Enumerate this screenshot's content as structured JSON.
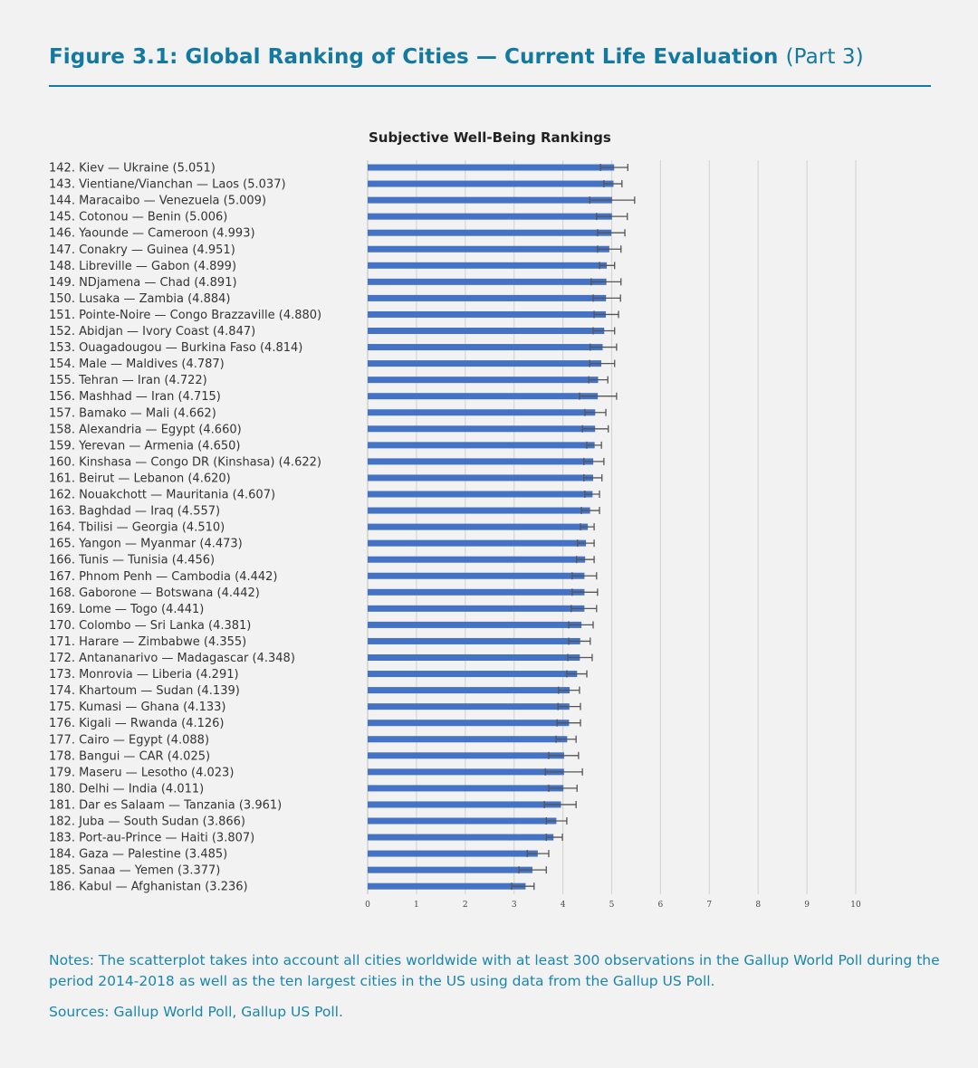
{
  "figure": {
    "title": "Figure 3.1: Global Ranking of Cities — Current Life Evaluation",
    "part": "(Part 3)"
  },
  "notes": "Notes: The scatterplot takes into account all cities worldwide with at least 300 observations in the Gallup World Poll during the period 2014-2018 as well as the ten largest cities in the US using data from the Gallup US Poll.",
  "sources": "Sources: Gallup World Poll, Gallup US Poll.",
  "chart_data": {
    "type": "bar",
    "orientation": "horizontal",
    "title": "Subjective Well-Being Rankings",
    "xlim": [
      0,
      10
    ],
    "xticks": [
      "0",
      "1",
      "2",
      "3",
      "4",
      "5",
      "6",
      "7",
      "8",
      "9",
      "10"
    ],
    "grid": true,
    "bar_color": "#4472c4",
    "error_color": "#555555",
    "items": [
      {
        "label": "142. Kiev — Ukraine (5.051)",
        "value": 5.051,
        "ci": [
          4.77,
          5.33
        ]
      },
      {
        "label": "143. Vientiane/Vianchan — Laos (5.037)",
        "value": 5.037,
        "ci": [
          4.84,
          5.21
        ]
      },
      {
        "label": "144. Maracaibo — Venezuela (5.009)",
        "value": 5.009,
        "ci": [
          4.55,
          5.47
        ]
      },
      {
        "label": "145. Cotonou — Benin (5.006)",
        "value": 5.006,
        "ci": [
          4.69,
          5.32
        ]
      },
      {
        "label": "146. Yaounde — Cameroon (4.993)",
        "value": 4.993,
        "ci": [
          4.71,
          5.27
        ]
      },
      {
        "label": "147. Conakry — Guinea (4.951)",
        "value": 4.951,
        "ci": [
          4.71,
          5.19
        ]
      },
      {
        "label": "148. Libreville — Gabon (4.899)",
        "value": 4.899,
        "ci": [
          4.75,
          5.06
        ]
      },
      {
        "label": "149. NDjamena — Chad (4.891)",
        "value": 4.891,
        "ci": [
          4.58,
          5.19
        ]
      },
      {
        "label": "150. Lusaka — Zambia (4.884)",
        "value": 4.884,
        "ci": [
          4.62,
          5.18
        ]
      },
      {
        "label": "151. Pointe-Noire — Congo Brazzaville (4.880)",
        "value": 4.88,
        "ci": [
          4.64,
          5.14
        ]
      },
      {
        "label": "152. Abidjan — Ivory Coast (4.847)",
        "value": 4.847,
        "ci": [
          4.62,
          5.06
        ]
      },
      {
        "label": "153. Ouagadougou — Burkina Faso (4.814)",
        "value": 4.814,
        "ci": [
          4.56,
          5.1
        ]
      },
      {
        "label": "154. Male — Maldives (4.787)",
        "value": 4.787,
        "ci": [
          4.55,
          5.06
        ]
      },
      {
        "label": "155. Tehran — Iran (4.722)",
        "value": 4.722,
        "ci": [
          4.53,
          4.92
        ]
      },
      {
        "label": "156. Mashhad — Iran (4.715)",
        "value": 4.715,
        "ci": [
          4.34,
          5.1
        ]
      },
      {
        "label": "157. Bamako — Mali (4.662)",
        "value": 4.662,
        "ci": [
          4.45,
          4.88
        ]
      },
      {
        "label": "158. Alexandria — Egypt (4.660)",
        "value": 4.66,
        "ci": [
          4.4,
          4.93
        ]
      },
      {
        "label": "159. Yerevan — Armenia (4.650)",
        "value": 4.65,
        "ci": [
          4.49,
          4.79
        ]
      },
      {
        "label": "160. Kinshasa — Congo DR (Kinshasa) (4.622)",
        "value": 4.622,
        "ci": [
          4.43,
          4.84
        ]
      },
      {
        "label": "161. Beirut — Lebanon (4.620)",
        "value": 4.62,
        "ci": [
          4.43,
          4.8
        ]
      },
      {
        "label": "162. Nouakchott — Mauritania (4.607)",
        "value": 4.607,
        "ci": [
          4.45,
          4.75
        ]
      },
      {
        "label": "163. Baghdad — Iraq (4.557)",
        "value": 4.557,
        "ci": [
          4.38,
          4.75
        ]
      },
      {
        "label": "164. Tbilisi — Georgia (4.510)",
        "value": 4.51,
        "ci": [
          4.36,
          4.64
        ]
      },
      {
        "label": "165. Yangon — Myanmar (4.473)",
        "value": 4.473,
        "ci": [
          4.3,
          4.64
        ]
      },
      {
        "label": "166. Tunis — Tunisia (4.456)",
        "value": 4.456,
        "ci": [
          4.28,
          4.64
        ]
      },
      {
        "label": "167. Phnom Penh — Cambodia (4.442)",
        "value": 4.442,
        "ci": [
          4.19,
          4.69
        ]
      },
      {
        "label": "168. Gaborone — Botswana (4.442)",
        "value": 4.442,
        "ci": [
          4.19,
          4.71
        ]
      },
      {
        "label": "169. Lome — Togo (4.441)",
        "value": 4.441,
        "ci": [
          4.17,
          4.69
        ]
      },
      {
        "label": "170. Colombo — Sri Lanka (4.381)",
        "value": 4.381,
        "ci": [
          4.12,
          4.62
        ]
      },
      {
        "label": "171. Harare — Zimbabwe (4.355)",
        "value": 4.355,
        "ci": [
          4.12,
          4.56
        ]
      },
      {
        "label": "172. Antananarivo — Madagascar (4.348)",
        "value": 4.348,
        "ci": [
          4.1,
          4.6
        ]
      },
      {
        "label": "173. Monrovia — Liberia (4.291)",
        "value": 4.291,
        "ci": [
          4.08,
          4.49
        ]
      },
      {
        "label": "174. Khartoum — Sudan (4.139)",
        "value": 4.139,
        "ci": [
          3.91,
          4.34
        ]
      },
      {
        "label": "175. Kumasi — Ghana (4.133)",
        "value": 4.133,
        "ci": [
          3.9,
          4.36
        ]
      },
      {
        "label": "176. Kigali — Rwanda (4.126)",
        "value": 4.126,
        "ci": [
          3.88,
          4.36
        ]
      },
      {
        "label": "177. Cairo — Egypt (4.088)",
        "value": 4.088,
        "ci": [
          3.86,
          4.27
        ]
      },
      {
        "label": "178. Bangui — CAR (4.025)",
        "value": 4.025,
        "ci": [
          3.71,
          4.32
        ]
      },
      {
        "label": "179. Maseru — Lesotho (4.023)",
        "value": 4.023,
        "ci": [
          3.64,
          4.4
        ]
      },
      {
        "label": "180. Delhi — India (4.011)",
        "value": 4.011,
        "ci": [
          3.71,
          4.29
        ]
      },
      {
        "label": "181. Dar es Salaam — Tanzania (3.961)",
        "value": 3.961,
        "ci": [
          3.62,
          4.27
        ]
      },
      {
        "label": "182. Juba — South Sudan (3.866)",
        "value": 3.866,
        "ci": [
          3.66,
          4.08
        ]
      },
      {
        "label": "183. Port-au-Prince — Haiti (3.807)",
        "value": 3.807,
        "ci": [
          3.66,
          3.99
        ]
      },
      {
        "label": "184. Gaza — Palestine (3.485)",
        "value": 3.485,
        "ci": [
          3.27,
          3.71
        ]
      },
      {
        "label": "185. Sanaa — Yemen (3.377)",
        "value": 3.377,
        "ci": [
          3.1,
          3.66
        ]
      },
      {
        "label": "186. Kabul — Afghanistan (3.236)",
        "value": 3.236,
        "ci": [
          2.95,
          3.41
        ]
      }
    ]
  }
}
